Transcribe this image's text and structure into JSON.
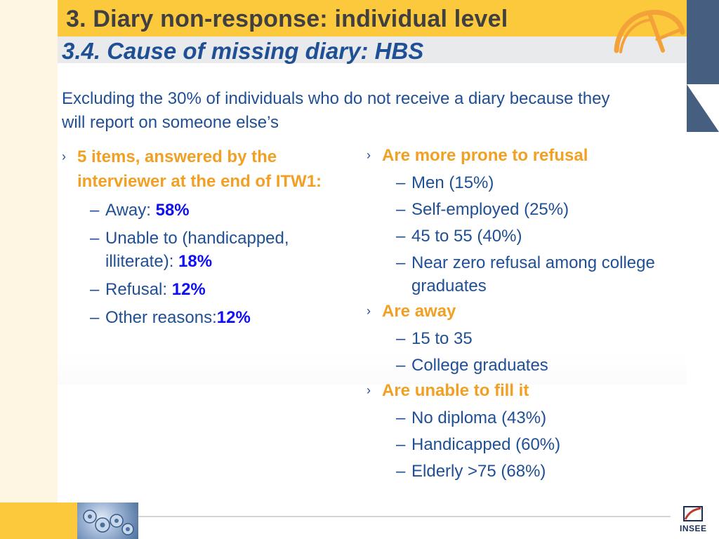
{
  "slide": {
    "title": "3. Diary non-response: individual level",
    "subtitle": "3.4. Cause of missing diary: HBS",
    "intro": "Excluding the 30% of individuals who do not receive a diary because they will report on someone else’s"
  },
  "left_column": {
    "heading": "5 items, answered by the interviewer at the end of ITW1:",
    "items": [
      {
        "label": "Away: ",
        "value": "58%"
      },
      {
        "label": "Unable to (handicapped, illiterate): ",
        "value": "18%"
      },
      {
        "label": "Refusal: ",
        "value": "12%"
      },
      {
        "label": "Other reasons:",
        "value": "12%"
      }
    ]
  },
  "right_column": {
    "groups": [
      {
        "heading": "Are more prone to refusal",
        "items": [
          "Men  (15%)",
          "Self-employed (25%)",
          "45 to 55 (40%)",
          "Near zero refusal among college graduates"
        ]
      },
      {
        "heading": "Are away",
        "items": [
          "15 to 35",
          "College graduates"
        ]
      },
      {
        "heading": "Are unable to fill it",
        "items": [
          "No diploma (43%)",
          "Handicapped (60%)",
          "Elderly >75 (68%)"
        ]
      }
    ]
  },
  "bullet_glyph": "›",
  "dash_glyph": "–",
  "footer": {
    "logo_text": "INSEE"
  },
  "colors": {
    "title_band": "#fcc93c",
    "accent_orange": "#f2a024",
    "text_blue": "#1f4f95",
    "percent_blue": "#0f0ff2",
    "side_panel": "#465e80"
  }
}
